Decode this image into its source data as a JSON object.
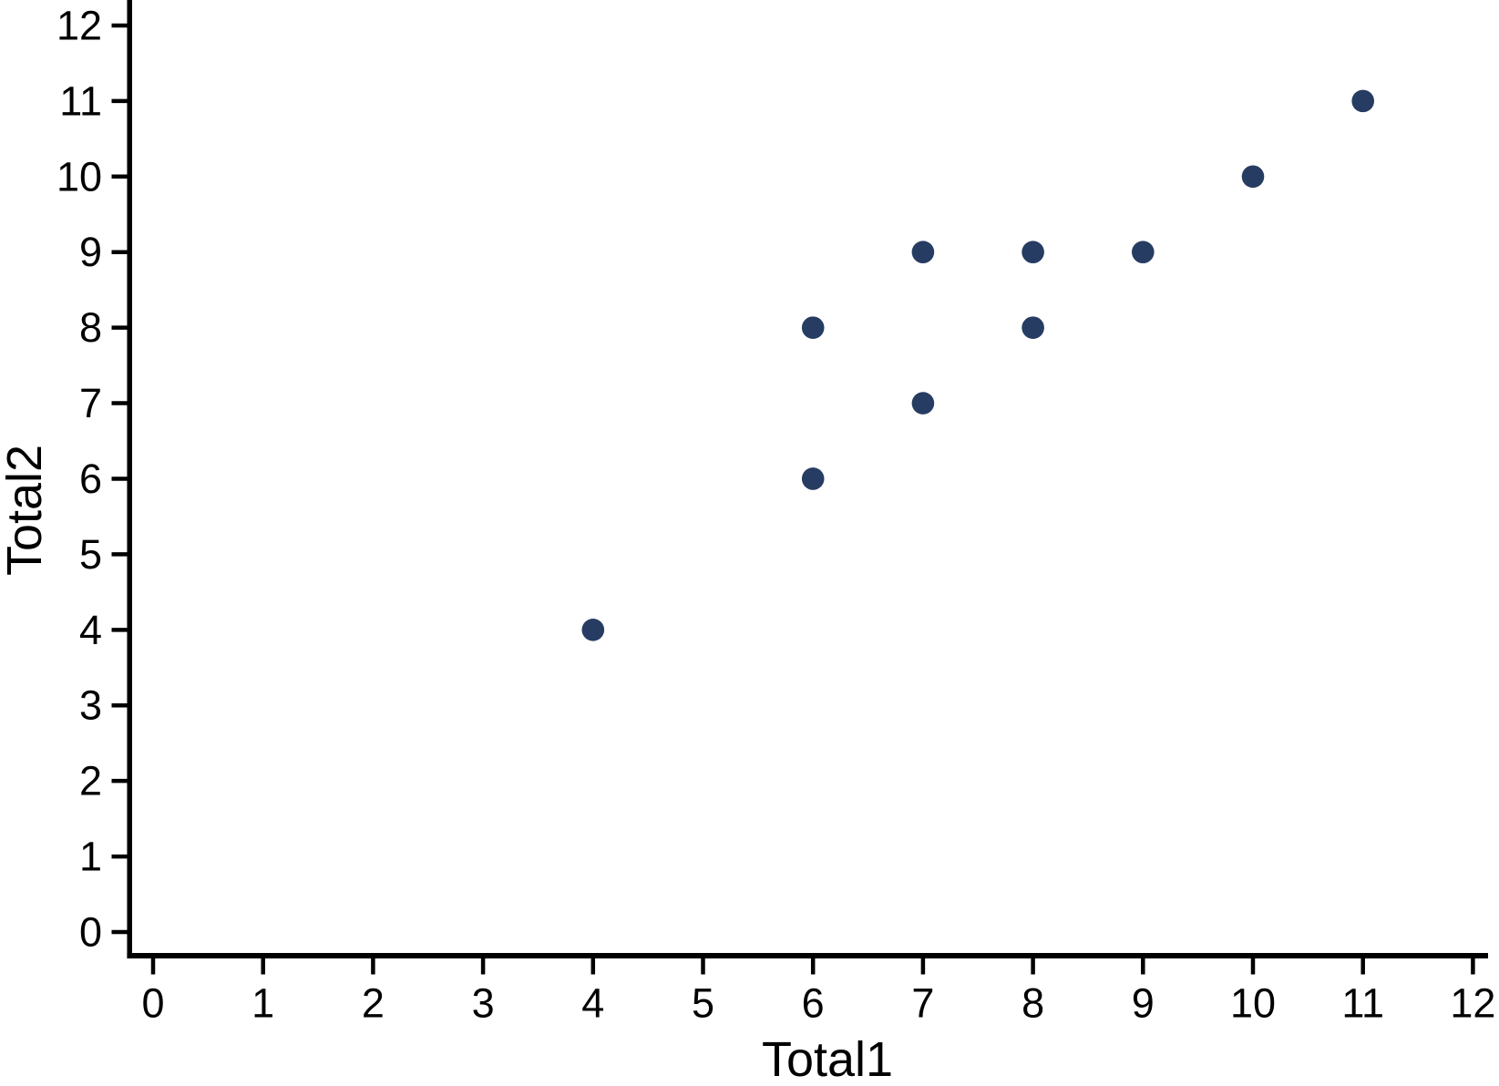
{
  "chart_data": {
    "type": "scatter",
    "title": "",
    "xlabel": "Total1",
    "ylabel": "Total2",
    "xlim": [
      0,
      12
    ],
    "ylim": [
      0,
      12
    ],
    "xticks": [
      0,
      1,
      2,
      3,
      4,
      5,
      6,
      7,
      8,
      9,
      10,
      11,
      12
    ],
    "yticks": [
      0,
      1,
      2,
      3,
      4,
      5,
      6,
      7,
      8,
      9,
      10,
      11,
      12
    ],
    "points": [
      {
        "x": 4,
        "y": 4
      },
      {
        "x": 6,
        "y": 6
      },
      {
        "x": 6,
        "y": 8
      },
      {
        "x": 7,
        "y": 7
      },
      {
        "x": 7,
        "y": 9
      },
      {
        "x": 8,
        "y": 8
      },
      {
        "x": 8,
        "y": 9
      },
      {
        "x": 9,
        "y": 9
      },
      {
        "x": 10,
        "y": 10
      },
      {
        "x": 11,
        "y": 11
      }
    ],
    "marker_color": "#273c62",
    "axis_color": "#000000",
    "background_color": "#ffffff",
    "grid": false,
    "legend": null
  }
}
